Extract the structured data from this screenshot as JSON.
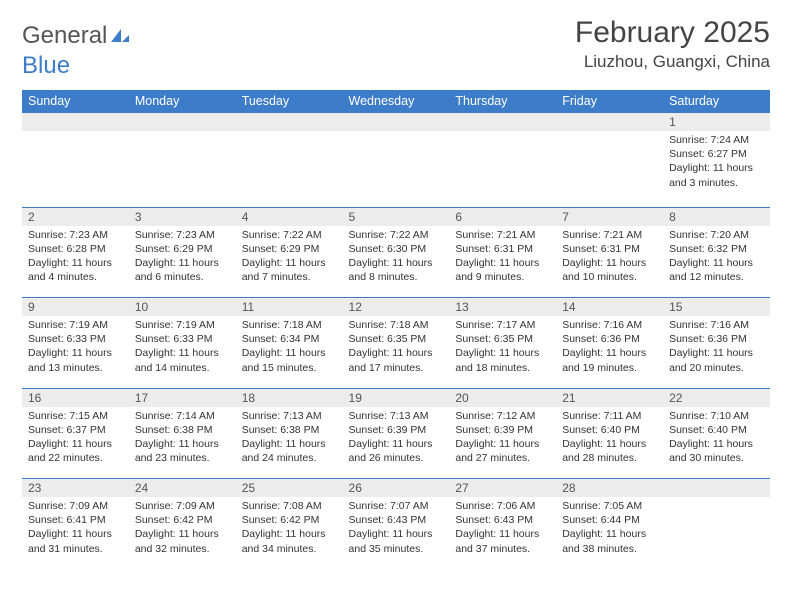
{
  "brand": {
    "part1": "General",
    "part2": "Blue"
  },
  "title": "February 2025",
  "location": "Liuzhou, Guangxi, China",
  "colors": {
    "header_bg": "#3d7cc9",
    "header_text": "#ffffff",
    "daynum_bg": "#ececec",
    "border": "#3d7cc9",
    "text": "#333333",
    "brand_gray": "#555555",
    "brand_blue": "#3d7cc9"
  },
  "weekdays": [
    "Sunday",
    "Monday",
    "Tuesday",
    "Wednesday",
    "Thursday",
    "Friday",
    "Saturday"
  ],
  "weeks": [
    {
      "nums": [
        "",
        "",
        "",
        "",
        "",
        "",
        "1"
      ],
      "cells": [
        "",
        "",
        "",
        "",
        "",
        "",
        "Sunrise: 7:24 AM\nSunset: 6:27 PM\nDaylight: 11 hours and 3 minutes."
      ]
    },
    {
      "nums": [
        "2",
        "3",
        "4",
        "5",
        "6",
        "7",
        "8"
      ],
      "cells": [
        "Sunrise: 7:23 AM\nSunset: 6:28 PM\nDaylight: 11 hours and 4 minutes.",
        "Sunrise: 7:23 AM\nSunset: 6:29 PM\nDaylight: 11 hours and 6 minutes.",
        "Sunrise: 7:22 AM\nSunset: 6:29 PM\nDaylight: 11 hours and 7 minutes.",
        "Sunrise: 7:22 AM\nSunset: 6:30 PM\nDaylight: 11 hours and 8 minutes.",
        "Sunrise: 7:21 AM\nSunset: 6:31 PM\nDaylight: 11 hours and 9 minutes.",
        "Sunrise: 7:21 AM\nSunset: 6:31 PM\nDaylight: 11 hours and 10 minutes.",
        "Sunrise: 7:20 AM\nSunset: 6:32 PM\nDaylight: 11 hours and 12 minutes."
      ]
    },
    {
      "nums": [
        "9",
        "10",
        "11",
        "12",
        "13",
        "14",
        "15"
      ],
      "cells": [
        "Sunrise: 7:19 AM\nSunset: 6:33 PM\nDaylight: 11 hours and 13 minutes.",
        "Sunrise: 7:19 AM\nSunset: 6:33 PM\nDaylight: 11 hours and 14 minutes.",
        "Sunrise: 7:18 AM\nSunset: 6:34 PM\nDaylight: 11 hours and 15 minutes.",
        "Sunrise: 7:18 AM\nSunset: 6:35 PM\nDaylight: 11 hours and 17 minutes.",
        "Sunrise: 7:17 AM\nSunset: 6:35 PM\nDaylight: 11 hours and 18 minutes.",
        "Sunrise: 7:16 AM\nSunset: 6:36 PM\nDaylight: 11 hours and 19 minutes.",
        "Sunrise: 7:16 AM\nSunset: 6:36 PM\nDaylight: 11 hours and 20 minutes."
      ]
    },
    {
      "nums": [
        "16",
        "17",
        "18",
        "19",
        "20",
        "21",
        "22"
      ],
      "cells": [
        "Sunrise: 7:15 AM\nSunset: 6:37 PM\nDaylight: 11 hours and 22 minutes.",
        "Sunrise: 7:14 AM\nSunset: 6:38 PM\nDaylight: 11 hours and 23 minutes.",
        "Sunrise: 7:13 AM\nSunset: 6:38 PM\nDaylight: 11 hours and 24 minutes.",
        "Sunrise: 7:13 AM\nSunset: 6:39 PM\nDaylight: 11 hours and 26 minutes.",
        "Sunrise: 7:12 AM\nSunset: 6:39 PM\nDaylight: 11 hours and 27 minutes.",
        "Sunrise: 7:11 AM\nSunset: 6:40 PM\nDaylight: 11 hours and 28 minutes.",
        "Sunrise: 7:10 AM\nSunset: 6:40 PM\nDaylight: 11 hours and 30 minutes."
      ]
    },
    {
      "nums": [
        "23",
        "24",
        "25",
        "26",
        "27",
        "28",
        ""
      ],
      "cells": [
        "Sunrise: 7:09 AM\nSunset: 6:41 PM\nDaylight: 11 hours and 31 minutes.",
        "Sunrise: 7:09 AM\nSunset: 6:42 PM\nDaylight: 11 hours and 32 minutes.",
        "Sunrise: 7:08 AM\nSunset: 6:42 PM\nDaylight: 11 hours and 34 minutes.",
        "Sunrise: 7:07 AM\nSunset: 6:43 PM\nDaylight: 11 hours and 35 minutes.",
        "Sunrise: 7:06 AM\nSunset: 6:43 PM\nDaylight: 11 hours and 37 minutes.",
        "Sunrise: 7:05 AM\nSunset: 6:44 PM\nDaylight: 11 hours and 38 minutes.",
        ""
      ]
    }
  ]
}
